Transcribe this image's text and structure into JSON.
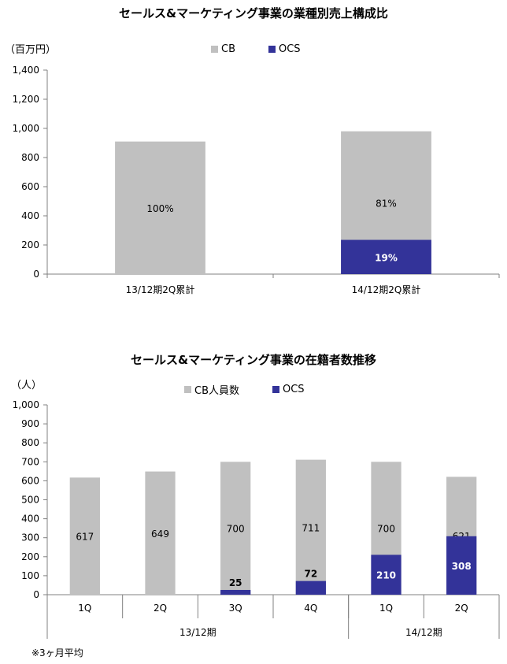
{
  "colors": {
    "cb": "#c0c0c0",
    "ocs": "#333399",
    "axis": "#808080"
  },
  "chart_data": [
    {
      "type": "bar",
      "stacked": true,
      "title": "セールス&マーケティング事業の業種別売上構成比",
      "unit_label": "（百万円）",
      "categories": [
        "13/12期2Q累計",
        "14/12期2Q累計"
      ],
      "series": [
        {
          "name": "CB",
          "values": [
            910,
            980
          ],
          "labels": [
            "100%",
            "81%"
          ]
        },
        {
          "name": "OCS",
          "values": [
            0,
            235
          ],
          "labels": [
            "",
            "19%"
          ]
        }
      ],
      "ylim": [
        0,
        1400
      ],
      "yticks": [
        0,
        200,
        400,
        600,
        800,
        1000,
        1200,
        1400
      ],
      "ytick_labels": [
        "0",
        "200",
        "400",
        "600",
        "800",
        "1,000",
        "1,200",
        "1,400"
      ],
      "legend": "top-center",
      "grid": false
    },
    {
      "type": "bar",
      "stacked": true,
      "title": "セールス&マーケティング事業の在籍者数推移",
      "unit_label": "（人）",
      "categories": [
        "1Q",
        "2Q",
        "3Q",
        "4Q",
        "1Q",
        "2Q"
      ],
      "groups": [
        {
          "label": "13/12期",
          "count": 4
        },
        {
          "label": "14/12期",
          "count": 2
        }
      ],
      "series": [
        {
          "name": "CB人員数",
          "values": [
            617,
            649,
            700,
            711,
            700,
            621
          ]
        },
        {
          "name": "OCS",
          "values": [
            0,
            0,
            25,
            72,
            210,
            308
          ]
        }
      ],
      "ylim": [
        0,
        1000
      ],
      "yticks": [
        0,
        100,
        200,
        300,
        400,
        500,
        600,
        700,
        800,
        900,
        1000
      ],
      "ytick_labels": [
        "0",
        "100",
        "200",
        "300",
        "400",
        "500",
        "600",
        "700",
        "800",
        "900",
        "1,000"
      ],
      "legend": "top-center",
      "grid": false
    }
  ],
  "footnote": "※3ヶ月平均"
}
